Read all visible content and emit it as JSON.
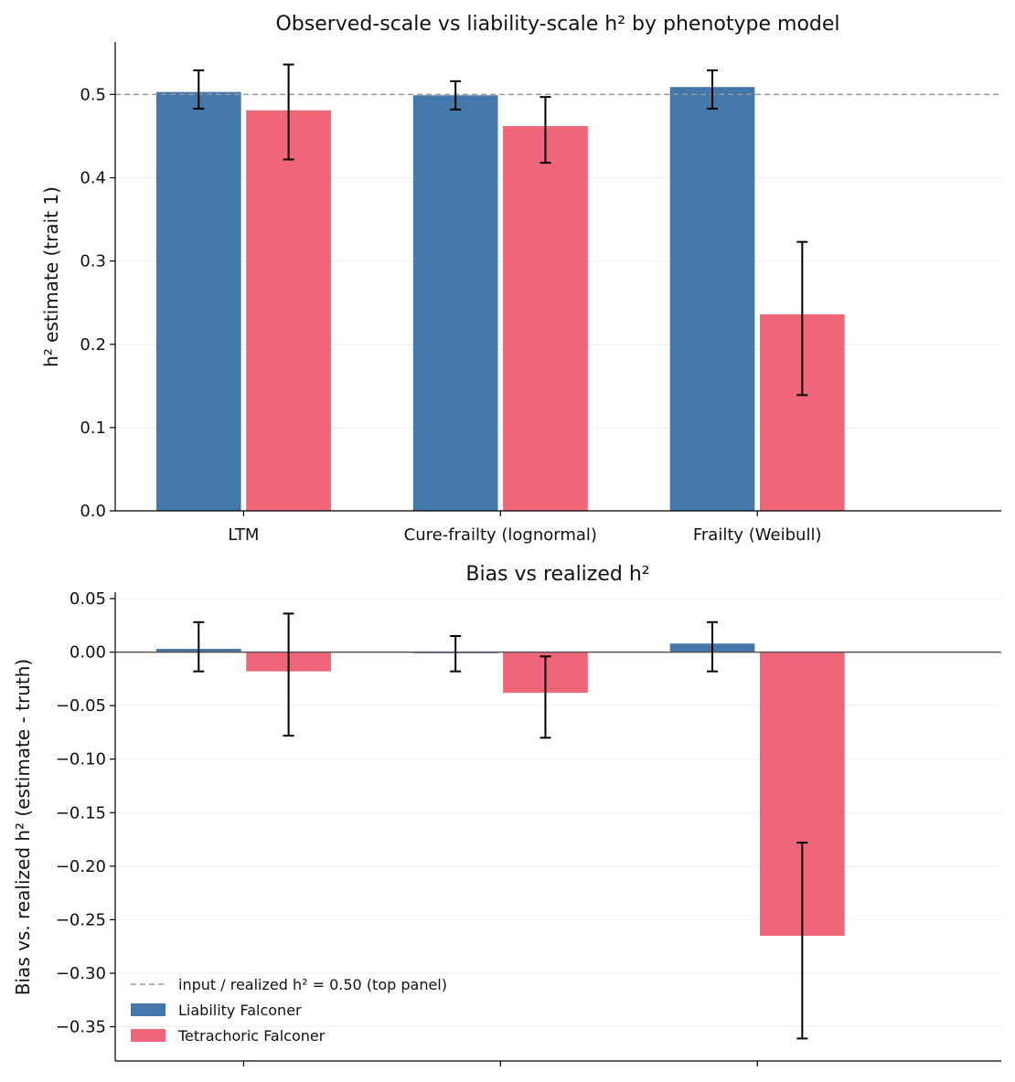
{
  "colors": {
    "liability": "#4477aa",
    "tetrachoric": "#ee6677",
    "reference_line": "#999999",
    "zero_line": "#555555",
    "grid": "#eeeeee",
    "errorbar": "#000000"
  },
  "legend": {
    "placement": "lower-left",
    "items": [
      {
        "label": "input / realized h² = 0.50 (top panel)",
        "kind": "dashed-line",
        "color_key": "reference_line"
      },
      {
        "label": "Liability Falconer",
        "kind": "patch",
        "color_key": "liability"
      },
      {
        "label": "Tetrachoric Falconer",
        "kind": "patch",
        "color_key": "tetrachoric"
      }
    ]
  },
  "chart_data": [
    {
      "type": "bar",
      "title": "Observed-scale vs liability-scale h² by phenotype model",
      "xlabel": "",
      "ylabel": "h² estimate (trait 1)",
      "categories": [
        "LTM",
        "Cure-frailty (lognormal)",
        "Frailty (Weibull)"
      ],
      "ylim": [
        0,
        0.563
      ],
      "yticks": [
        0.0,
        0.1,
        0.2,
        0.3,
        0.4,
        0.5
      ],
      "ytick_labels": [
        "0.0",
        "0.1",
        "0.2",
        "0.3",
        "0.4",
        "0.5"
      ],
      "grid": "y-major",
      "reference_line": {
        "y": 0.5,
        "style": "dashed"
      },
      "series": [
        {
          "name": "Liability Falconer",
          "values": [
            0.503,
            0.499,
            0.509
          ],
          "err_low": [
            0.483,
            0.482,
            0.483
          ],
          "err_high": [
            0.529,
            0.516,
            0.529
          ]
        },
        {
          "name": "Tetrachoric Falconer",
          "values": [
            0.481,
            0.462,
            0.236
          ],
          "err_low": [
            0.422,
            0.418,
            0.139
          ],
          "err_high": [
            0.536,
            0.497,
            0.323
          ]
        }
      ]
    },
    {
      "type": "bar",
      "title": "Bias vs realized h²",
      "xlabel": "",
      "ylabel": "Bias vs. realized h² (estimate - truth)",
      "categories": [
        "LTM",
        "Cure-frailty (lognormal)",
        "Frailty (Weibull)"
      ],
      "show_category_labels": false,
      "ylim": [
        -0.382,
        0.056
      ],
      "yticks": [
        0.05,
        0.0,
        -0.05,
        -0.1,
        -0.15,
        -0.2,
        -0.25,
        -0.3,
        -0.35
      ],
      "ytick_labels": [
        "0.05",
        "0.00",
        "−0.05",
        "−0.10",
        "−0.15",
        "−0.20",
        "−0.25",
        "−0.30",
        "−0.35"
      ],
      "grid": "y-major",
      "reference_line": {
        "y": 0.0,
        "style": "solid"
      },
      "series": [
        {
          "name": "Liability Falconer",
          "values": [
            0.003,
            -0.001,
            0.008
          ],
          "err_low": [
            -0.018,
            -0.018,
            -0.018
          ],
          "err_high": [
            0.028,
            0.015,
            0.028
          ]
        },
        {
          "name": "Tetrachoric Falconer",
          "values": [
            -0.018,
            -0.038,
            -0.265
          ],
          "err_low": [
            -0.078,
            -0.08,
            -0.361
          ],
          "err_high": [
            0.036,
            -0.004,
            -0.178
          ]
        }
      ]
    }
  ]
}
